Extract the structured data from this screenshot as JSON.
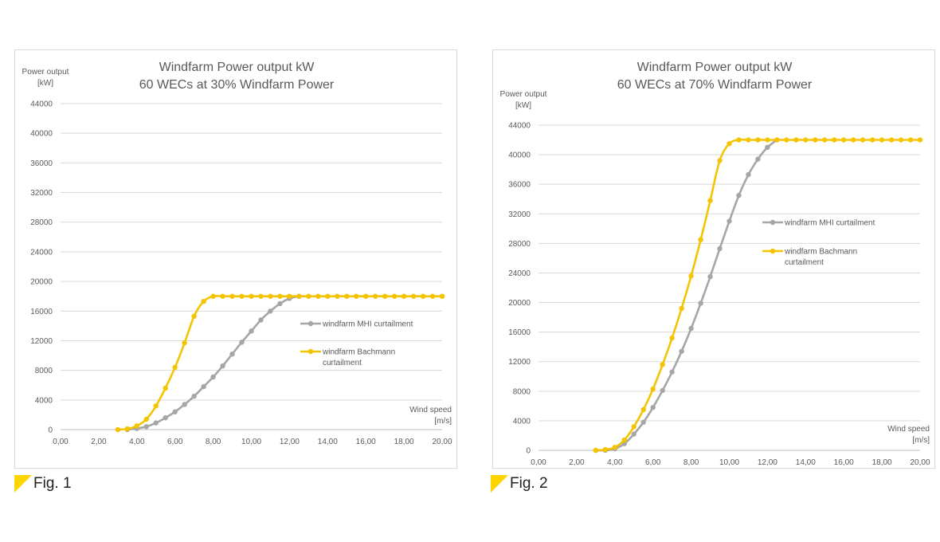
{
  "colors": {
    "mhi": "#a6a6a6",
    "bachmann": "#f5c400",
    "grid": "#d9d9d9",
    "text": "#595959"
  },
  "figures": [
    {
      "label": "Fig. 1",
      "marker_icon": "yellow-triangle-icon"
    },
    {
      "label": "Fig. 2",
      "marker_icon": "yellow-triangle-icon"
    }
  ],
  "chart_data": [
    {
      "type": "line",
      "title": [
        "Windfarm Power output kW",
        "60 WECs at 30% Windfarm Power"
      ],
      "ylabel": [
        "Power output",
        "[kW]"
      ],
      "xlabel": [
        "Wind speed",
        "[m/s]"
      ],
      "xlim": [
        0,
        20
      ],
      "ylim": [
        0,
        44000
      ],
      "xticks": [
        "0,00",
        "2,00",
        "4,00",
        "6,00",
        "8,00",
        "10,00",
        "12,00",
        "14,00",
        "16,00",
        "18,00",
        "20,00"
      ],
      "yticks": [
        "0",
        "4000",
        "8000",
        "12000",
        "16000",
        "20000",
        "24000",
        "28000",
        "32000",
        "36000",
        "40000",
        "44000"
      ],
      "legend_position": "right-middle",
      "series": [
        {
          "name": "windfarm MHI curtailment",
          "color_key": "mhi",
          "x": [
            3.5,
            4.0,
            4.5,
            5.0,
            5.5,
            6.0,
            6.5,
            7.0,
            7.5,
            8.0,
            8.5,
            9.0,
            9.5,
            10.0,
            10.5,
            11.0,
            11.5,
            12.0,
            12.5
          ],
          "y": [
            0,
            150,
            400,
            900,
            1600,
            2400,
            3400,
            4500,
            5800,
            7100,
            8600,
            10200,
            11800,
            13300,
            14800,
            16000,
            17000,
            17700,
            18000
          ]
        },
        {
          "name": "windfarm Bachmann curtailment",
          "color_key": "bachmann",
          "x": [
            3.0,
            3.5,
            4.0,
            4.5,
            5.0,
            5.5,
            6.0,
            6.5,
            7.0,
            7.5,
            8.0,
            8.5,
            9.0,
            9.5,
            10.0,
            10.5,
            11.0,
            11.5,
            12.0,
            12.5,
            13.0,
            13.5,
            14.0,
            14.5,
            15.0,
            15.5,
            16.0,
            16.5,
            17.0,
            17.5,
            18.0,
            18.5,
            19.0,
            19.5,
            20.0
          ],
          "y": [
            0,
            100,
            500,
            1400,
            3200,
            5600,
            8400,
            11700,
            15300,
            17300,
            18000,
            18000,
            18000,
            18000,
            18000,
            18000,
            18000,
            18000,
            18000,
            18000,
            18000,
            18000,
            18000,
            18000,
            18000,
            18000,
            18000,
            18000,
            18000,
            18000,
            18000,
            18000,
            18000,
            18000,
            18000
          ]
        }
      ]
    },
    {
      "type": "line",
      "title": [
        "Windfarm Power output kW",
        "60 WECs at 70% Windfarm Power"
      ],
      "ylabel": [
        "Power output",
        "[kW]"
      ],
      "xlabel": [
        "Wind speed",
        "[m/s]"
      ],
      "xlim": [
        0,
        20
      ],
      "ylim": [
        0,
        44000
      ],
      "xticks": [
        "0,00",
        "2,00",
        "4,00",
        "6,00",
        "8,00",
        "10,00",
        "12,00",
        "14,00",
        "16,00",
        "18,00",
        "20,00"
      ],
      "yticks": [
        "0",
        "4000",
        "8000",
        "12000",
        "16000",
        "20000",
        "24000",
        "28000",
        "32000",
        "36000",
        "40000",
        "44000"
      ],
      "legend_position": "right-upper-middle",
      "series": [
        {
          "name": "windfarm MHI curtailment",
          "color_key": "mhi",
          "x": [
            3.0,
            3.5,
            4.0,
            4.5,
            5.0,
            5.5,
            6.0,
            6.5,
            7.0,
            7.5,
            8.0,
            8.5,
            9.0,
            9.5,
            10.0,
            10.5,
            11.0,
            11.5,
            12.0,
            12.5
          ],
          "y": [
            0,
            0,
            200,
            900,
            2200,
            3800,
            5800,
            8100,
            10600,
            13400,
            16500,
            19900,
            23500,
            27300,
            31000,
            34500,
            37300,
            39400,
            41000,
            42000
          ]
        },
        {
          "name": "windfarm Bachmann curtailment",
          "color_key": "bachmann",
          "x": [
            3.0,
            3.5,
            4.0,
            4.5,
            5.0,
            5.5,
            6.0,
            6.5,
            7.0,
            7.5,
            8.0,
            8.5,
            9.0,
            9.5,
            10.0,
            10.5,
            11.0,
            11.5,
            12.0,
            12.5,
            13.0,
            13.5,
            14.0,
            14.5,
            15.0,
            15.5,
            16.0,
            16.5,
            17.0,
            17.5,
            18.0,
            18.5,
            19.0,
            19.5,
            20.0
          ],
          "y": [
            0,
            100,
            400,
            1400,
            3200,
            5500,
            8300,
            11600,
            15200,
            19200,
            23600,
            28500,
            33800,
            39200,
            41500,
            42000,
            42000,
            42000,
            42000,
            42000,
            42000,
            42000,
            42000,
            42000,
            42000,
            42000,
            42000,
            42000,
            42000,
            42000,
            42000,
            42000,
            42000,
            42000,
            42000
          ]
        }
      ]
    }
  ]
}
